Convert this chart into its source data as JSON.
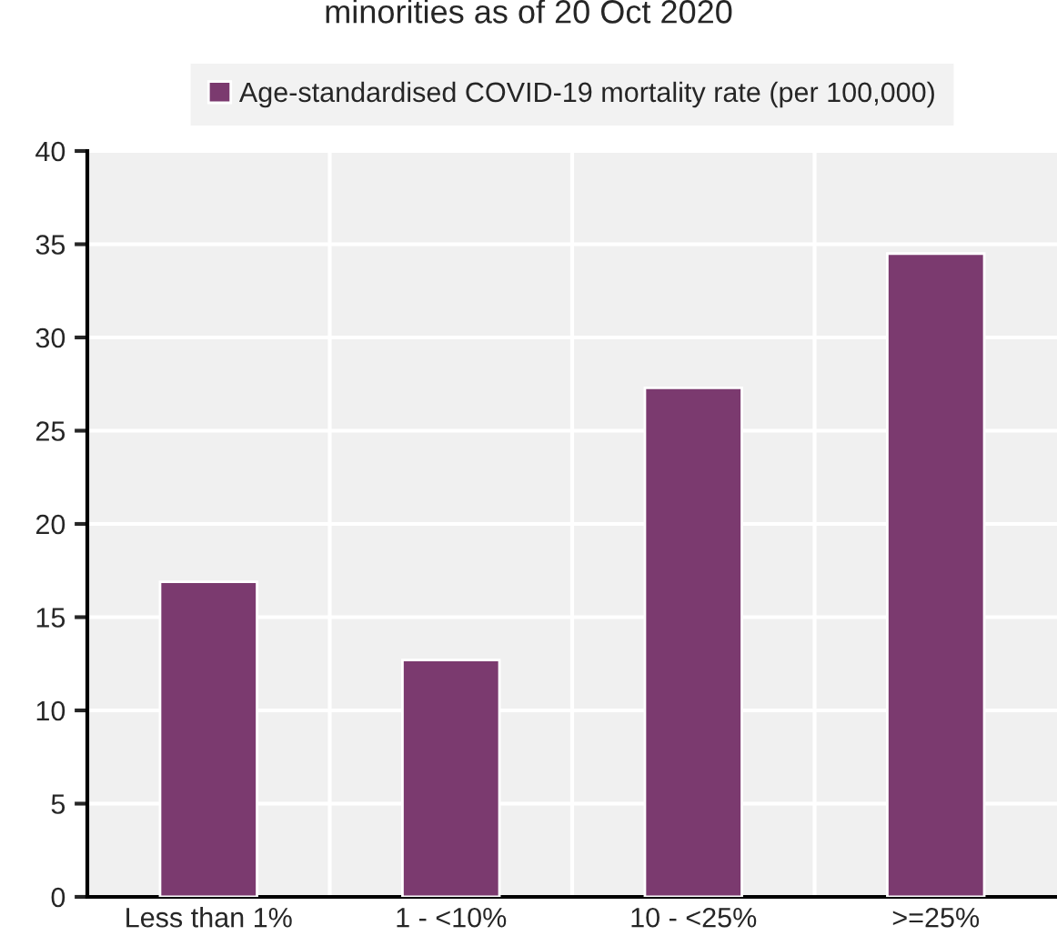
{
  "chart_data": {
    "type": "bar",
    "title": "minorities as of 20 Oct 2020",
    "categories": [
      "Less than 1%",
      "1 - <10%",
      "10 - <25%",
      ">=25%"
    ],
    "series": [
      {
        "name": "Age-standardised COVID-19 mortality rate (per 100,000)",
        "color": "#7b3a6f",
        "values": [
          16.9,
          12.7,
          27.3,
          34.5
        ]
      }
    ],
    "ylim": [
      0,
      40
    ],
    "yticks": [
      0,
      5,
      10,
      15,
      20,
      25,
      30,
      35,
      40
    ],
    "grid": true,
    "legend": "top"
  }
}
